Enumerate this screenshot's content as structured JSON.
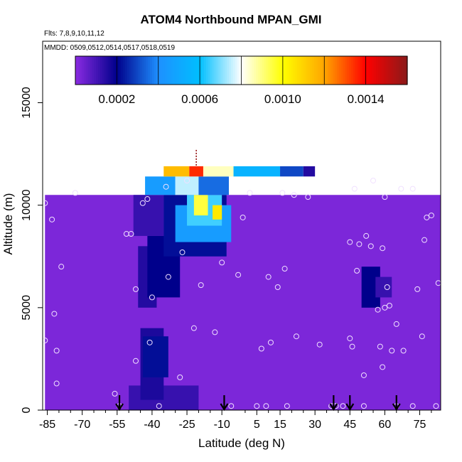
{
  "chart_data": {
    "type": "heatmap",
    "title": "ATOM4 Northbound MPAN_GMI",
    "flights_label": "Flts: 7,8,9,10,11,12",
    "dates_label": "MMDD: 0509,0512,0514,0517,0518,0519",
    "xlabel": "Latitude (deg N)",
    "ylabel": "Altitude (m)",
    "xlim": [
      -87,
      84
    ],
    "ylim": [
      0,
      18000
    ],
    "xticks": [
      -85,
      -70,
      -55,
      -40,
      -25,
      -10,
      5,
      15,
      30,
      45,
      60,
      75
    ],
    "xticks_minor": [
      -80,
      -75,
      -65,
      -60,
      -50,
      -45,
      -35,
      -30,
      -20,
      -15,
      0,
      10,
      20,
      25,
      35,
      40,
      50,
      55,
      65,
      70,
      80
    ],
    "yticks": [
      0,
      5000,
      10000,
      15000
    ],
    "colorbar": {
      "range": [
        0,
        0.0016
      ],
      "tick_values": [
        0.0002,
        0.0006,
        0.001,
        0.0014
      ],
      "tick_labels": [
        "0.0002",
        "0.0006",
        "0.0010",
        "0.0014"
      ],
      "divisions": [
        0,
        0.0002,
        0.0004,
        0.0006,
        0.0008,
        0.001,
        0.0012,
        0.0014,
        0.0016
      ],
      "colors": [
        "#8a2be2",
        "#00008b",
        "#1e90ff",
        "#00bfff",
        "#ffffff",
        "#ffff00",
        "#ffa500",
        "#ff0000",
        "#8b1a1a"
      ]
    },
    "background_value": 2e-05,
    "regions": [
      {
        "lat": [
          -86,
          84
        ],
        "alt": [
          0,
          10500
        ],
        "value": 2e-05
      },
      {
        "lat": [
          -50,
          -20
        ],
        "alt": [
          0,
          1200
        ],
        "value": 0.00012
      },
      {
        "lat": [
          -45,
          -35
        ],
        "alt": [
          500,
          4000
        ],
        "value": 0.00016
      },
      {
        "lat": [
          -44,
          -33
        ],
        "alt": [
          1600,
          3600
        ],
        "value": 0.00022
      },
      {
        "lat": [
          -46,
          -38
        ],
        "alt": [
          5000,
          8000
        ],
        "value": 0.00015
      },
      {
        "lat": [
          -42,
          -28
        ],
        "alt": [
          5500,
          8500
        ],
        "value": 0.0002
      },
      {
        "lat": [
          -48,
          -35
        ],
        "alt": [
          8500,
          10500
        ],
        "value": 0.00012
      },
      {
        "lat": [
          -35,
          -8
        ],
        "alt": [
          7500,
          10500
        ],
        "value": 0.00022
      },
      {
        "lat": [
          -30,
          -6
        ],
        "alt": [
          8200,
          10000
        ],
        "value": 0.00045
      },
      {
        "lat": [
          -25,
          -10
        ],
        "alt": [
          9000,
          10500
        ],
        "value": 0.00065
      },
      {
        "lat": [
          -22,
          -16
        ],
        "alt": [
          9500,
          10500
        ],
        "value": 0.00095
      },
      {
        "lat": [
          -14,
          -10
        ],
        "alt": [
          9300,
          10000
        ],
        "value": 0.00105
      },
      {
        "lat": [
          -43,
          -30
        ],
        "alt": [
          10500,
          11400
        ],
        "value": 0.00045
      },
      {
        "lat": [
          -30,
          -20
        ],
        "alt": [
          10500,
          11400
        ],
        "value": 0.00075
      },
      {
        "lat": [
          -20,
          -7
        ],
        "alt": [
          10500,
          11400
        ],
        "value": 0.00035
      },
      {
        "lat": [
          -35,
          -24
        ],
        "alt": [
          11400,
          11900
        ],
        "value": 0.00115
      },
      {
        "lat": [
          -24,
          -18
        ],
        "alt": [
          11400,
          11900
        ],
        "value": 0.00135
      },
      {
        "lat": [
          -18,
          -5
        ],
        "alt": [
          11400,
          11900
        ],
        "value": 0.00085
      },
      {
        "lat": [
          -5,
          15
        ],
        "alt": [
          11400,
          11900
        ],
        "value": 0.00055
      },
      {
        "lat": [
          15,
          25
        ],
        "alt": [
          11400,
          11900
        ],
        "value": 0.0003
      },
      {
        "lat": [
          25,
          30
        ],
        "alt": [
          11400,
          11900
        ],
        "value": 0.00015
      },
      {
        "lat": [
          50,
          58
        ],
        "alt": [
          5000,
          7000
        ],
        "value": 0.0002
      },
      {
        "lat": [
          56,
          63
        ],
        "alt": [
          5500,
          6500
        ],
        "value": 0.00012
      }
    ],
    "flight_points": [
      {
        "lat": -86,
        "alt": 3400
      },
      {
        "lat": -86,
        "alt": 10100
      },
      {
        "lat": -83,
        "alt": 9300
      },
      {
        "lat": -82,
        "alt": 4700
      },
      {
        "lat": -81,
        "alt": 2900
      },
      {
        "lat": -81,
        "alt": 1300
      },
      {
        "lat": -79,
        "alt": 7000
      },
      {
        "lat": -73,
        "alt": 10600
      },
      {
        "lat": -56,
        "alt": 800
      },
      {
        "lat": -54,
        "alt": 200
      },
      {
        "lat": -51,
        "alt": 8600
      },
      {
        "lat": -49,
        "alt": 8600
      },
      {
        "lat": -47,
        "alt": 5900
      },
      {
        "lat": -47,
        "alt": 2400
      },
      {
        "lat": -44,
        "alt": 10100
      },
      {
        "lat": -42,
        "alt": 10300
      },
      {
        "lat": -41,
        "alt": 3300
      },
      {
        "lat": -40,
        "alt": 5500
      },
      {
        "lat": -37,
        "alt": 200
      },
      {
        "lat": -34,
        "alt": 10900
      },
      {
        "lat": -33,
        "alt": 6500
      },
      {
        "lat": -28,
        "alt": 1600
      },
      {
        "lat": -27,
        "alt": 7700
      },
      {
        "lat": -25,
        "alt": 11200
      },
      {
        "lat": -22,
        "alt": 4000
      },
      {
        "lat": -19,
        "alt": 6100
      },
      {
        "lat": -13,
        "alt": 3800
      },
      {
        "lat": -10,
        "alt": 7200
      },
      {
        "lat": -6,
        "alt": 200
      },
      {
        "lat": -3,
        "alt": 6600
      },
      {
        "lat": -1,
        "alt": 9400
      },
      {
        "lat": 2,
        "alt": 10600
      },
      {
        "lat": 5,
        "alt": 200
      },
      {
        "lat": 7,
        "alt": 3000
      },
      {
        "lat": 9,
        "alt": 200
      },
      {
        "lat": 10,
        "alt": 6500
      },
      {
        "lat": 11,
        "alt": 3300
      },
      {
        "lat": 14,
        "alt": 6000
      },
      {
        "lat": 16,
        "alt": 10600
      },
      {
        "lat": 17,
        "alt": 6900
      },
      {
        "lat": 18,
        "alt": 200
      },
      {
        "lat": 21,
        "alt": 10500
      },
      {
        "lat": 22,
        "alt": 3600
      },
      {
        "lat": 27,
        "alt": 10400
      },
      {
        "lat": 32,
        "alt": 3200
      },
      {
        "lat": 37,
        "alt": 200
      },
      {
        "lat": 39,
        "alt": 200
      },
      {
        "lat": 42,
        "alt": 200
      },
      {
        "lat": 45,
        "alt": 8200
      },
      {
        "lat": 45,
        "alt": 3500
      },
      {
        "lat": 46,
        "alt": 3100
      },
      {
        "lat": 47,
        "alt": 10800
      },
      {
        "lat": 48,
        "alt": 6800
      },
      {
        "lat": 49,
        "alt": 8100
      },
      {
        "lat": 51,
        "alt": 200
      },
      {
        "lat": 51,
        "alt": 1700
      },
      {
        "lat": 52,
        "alt": 8500
      },
      {
        "lat": 54,
        "alt": 8000
      },
      {
        "lat": 55,
        "alt": 11200
      },
      {
        "lat": 57,
        "alt": 4900
      },
      {
        "lat": 58,
        "alt": 3100
      },
      {
        "lat": 59,
        "alt": 2100
      },
      {
        "lat": 59,
        "alt": 7900
      },
      {
        "lat": 60,
        "alt": 5000
      },
      {
        "lat": 60,
        "alt": 10400
      },
      {
        "lat": 61,
        "alt": 6000
      },
      {
        "lat": 62,
        "alt": 5100
      },
      {
        "lat": 63,
        "alt": 2900
      },
      {
        "lat": 65,
        "alt": 200
      },
      {
        "lat": 65,
        "alt": 4200
      },
      {
        "lat": 67,
        "alt": 10800
      },
      {
        "lat": 68,
        "alt": 2900
      },
      {
        "lat": 72,
        "alt": 200
      },
      {
        "lat": 72,
        "alt": 10800
      },
      {
        "lat": 74,
        "alt": 5900
      },
      {
        "lat": 76,
        "alt": 3600
      },
      {
        "lat": 77,
        "alt": 8300
      },
      {
        "lat": 78,
        "alt": 9400
      },
      {
        "lat": 80,
        "alt": 9500
      },
      {
        "lat": 82,
        "alt": 200
      },
      {
        "lat": 83,
        "alt": 6200
      }
    ],
    "arrows_lat": [
      -54,
      -9,
      38,
      45,
      65
    ],
    "tropopause_marker": {
      "lat": -21,
      "alt_range": [
        11900,
        12700
      ]
    }
  }
}
